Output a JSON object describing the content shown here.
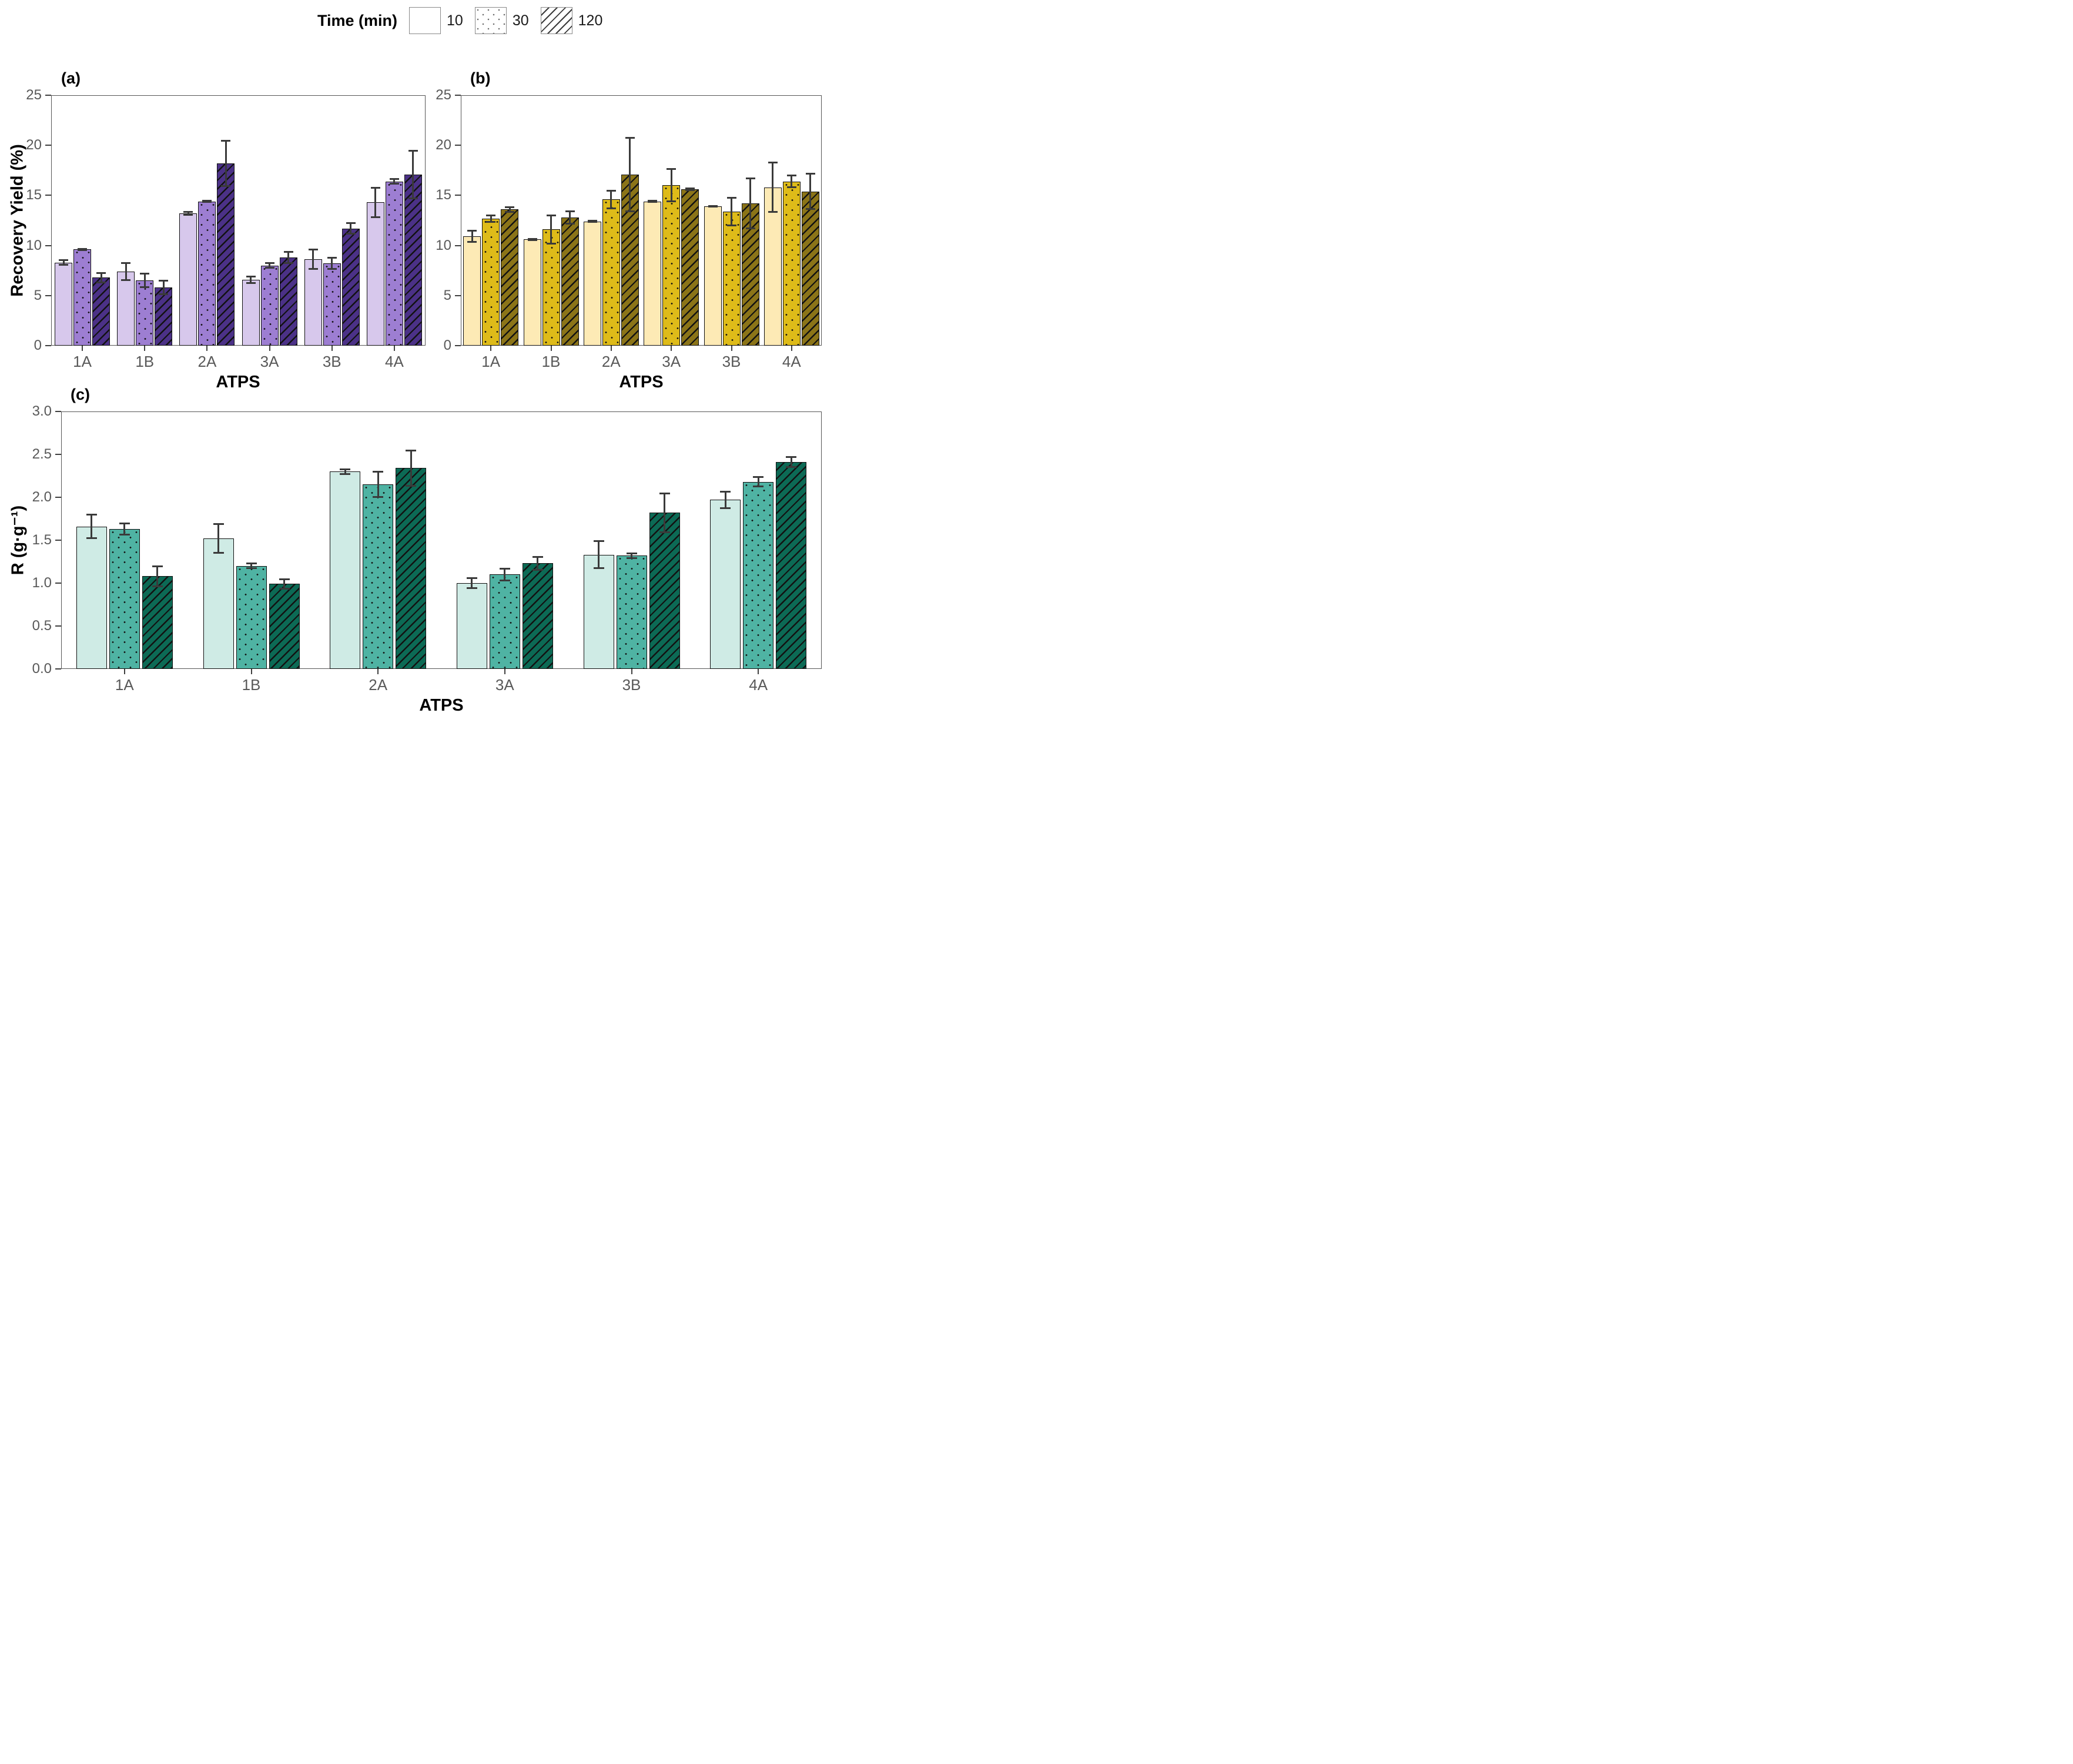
{
  "legend": {
    "title": "Time (min)",
    "items": [
      {
        "label": "10",
        "pattern": "plain"
      },
      {
        "label": "30",
        "pattern": "dots"
      },
      {
        "label": "120",
        "pattern": "hatch"
      }
    ]
  },
  "x_axis_title": "ATPS",
  "chart_data": [
    {
      "panel_label": "(a)",
      "type": "bar",
      "title": "",
      "ylabel": "Recovery Yield (%)",
      "xlabel": "ATPS",
      "ylim": [
        0,
        25
      ],
      "yticks": [
        "0",
        "5",
        "10",
        "15",
        "20",
        "25"
      ],
      "grid": false,
      "legend_position": "top",
      "categories": [
        "1A",
        "1B",
        "2A",
        "3A",
        "3B",
        "4A"
      ],
      "series": [
        {
          "name": "10",
          "pattern": "plain",
          "color": "#d7c8ec",
          "values": [
            8.3,
            7.4,
            13.2,
            6.6,
            8.6,
            14.3
          ],
          "errors": [
            0.25,
            0.9,
            0.2,
            0.35,
            1.0,
            1.5
          ]
        },
        {
          "name": "30",
          "pattern": "dots",
          "color": "#9d7ed2",
          "values": [
            9.6,
            6.5,
            14.4,
            8.0,
            8.2,
            16.4
          ],
          "errors": [
            0.1,
            0.7,
            0.1,
            0.25,
            0.6,
            0.25
          ]
        },
        {
          "name": "120",
          "pattern": "hatch",
          "color": "#4b3187",
          "values": [
            6.8,
            5.8,
            18.2,
            8.8,
            11.7,
            17.1
          ],
          "errors": [
            0.5,
            0.7,
            2.3,
            0.6,
            0.55,
            2.4
          ]
        }
      ]
    },
    {
      "panel_label": "(b)",
      "type": "bar",
      "title": "",
      "ylabel": "",
      "xlabel": "ATPS",
      "ylim": [
        0,
        25
      ],
      "yticks": [
        "0",
        "5",
        "10",
        "15",
        "20",
        "25"
      ],
      "grid": false,
      "legend_position": "top",
      "categories": [
        "1A",
        "1B",
        "2A",
        "3A",
        "3B",
        "4A"
      ],
      "series": [
        {
          "name": "10",
          "pattern": "plain",
          "color": "#fdeab5",
          "values": [
            10.9,
            10.6,
            12.4,
            14.4,
            13.9,
            15.8
          ],
          "errors": [
            0.6,
            0.1,
            0.1,
            0.1,
            0.05,
            2.5
          ]
        },
        {
          "name": "30",
          "pattern": "dots",
          "color": "#debb19",
          "values": [
            12.7,
            11.6,
            14.6,
            16.0,
            13.4,
            16.4
          ],
          "errors": [
            0.35,
            1.45,
            0.9,
            1.65,
            1.4,
            0.6
          ]
        },
        {
          "name": "120",
          "pattern": "hatch",
          "color": "#8b7418",
          "values": [
            13.6,
            12.8,
            17.1,
            15.6,
            14.2,
            15.4
          ],
          "errors": [
            0.25,
            0.65,
            3.7,
            0.1,
            2.5,
            1.8
          ]
        }
      ]
    },
    {
      "panel_label": "(c)",
      "type": "bar",
      "title": "",
      "ylabel": "R (g·g⁻¹)",
      "xlabel": "ATPS",
      "ylim": [
        0,
        3
      ],
      "yticks": [
        "0.0",
        "0.5",
        "1.0",
        "1.5",
        "2.0",
        "2.5",
        "3.0"
      ],
      "grid": false,
      "legend_position": "top",
      "categories": [
        "1A",
        "1B",
        "2A",
        "3A",
        "3B",
        "4A"
      ],
      "series": [
        {
          "name": "10",
          "pattern": "plain",
          "color": "#cfebe5",
          "values": [
            1.66,
            1.52,
            2.3,
            1.0,
            1.33,
            1.97
          ],
          "errors": [
            0.14,
            0.17,
            0.03,
            0.06,
            0.16,
            0.1
          ]
        },
        {
          "name": "30",
          "pattern": "dots",
          "color": "#4fb3a3",
          "values": [
            1.63,
            1.2,
            2.15,
            1.1,
            1.32,
            2.18
          ],
          "errors": [
            0.07,
            0.03,
            0.15,
            0.07,
            0.03,
            0.06
          ]
        },
        {
          "name": "120",
          "pattern": "hatch",
          "color": "#0c6a55",
          "values": [
            1.08,
            0.99,
            2.34,
            1.23,
            1.82,
            2.41
          ],
          "errors": [
            0.12,
            0.06,
            0.21,
            0.08,
            0.23,
            0.06
          ]
        }
      ]
    }
  ]
}
